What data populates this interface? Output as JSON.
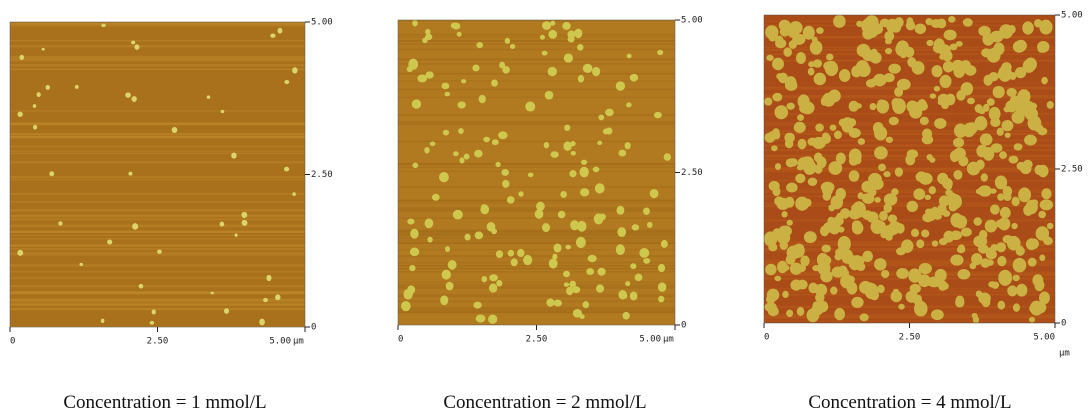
{
  "panels": [
    {
      "y_ticks": [
        "5.00",
        "2.50",
        "0"
      ],
      "x_ticks": [
        "0",
        "2.50",
        "5.00"
      ],
      "unit": "µm",
      "caption": "Concentration = 1 mmol/L"
    },
    {
      "y_ticks": [
        "5.00",
        "2.50",
        "0"
      ],
      "x_ticks": [
        "0",
        "2.50",
        "5.00"
      ],
      "unit": "µm",
      "caption": "Concentration = 2 mmol/L"
    },
    {
      "y_ticks": [
        "5.00",
        "2.50",
        "0"
      ],
      "x_ticks": [
        "0",
        "2.50",
        "5.00"
      ],
      "unit": "µm",
      "caption": "Concentration = 4 mmol/L"
    }
  ]
}
